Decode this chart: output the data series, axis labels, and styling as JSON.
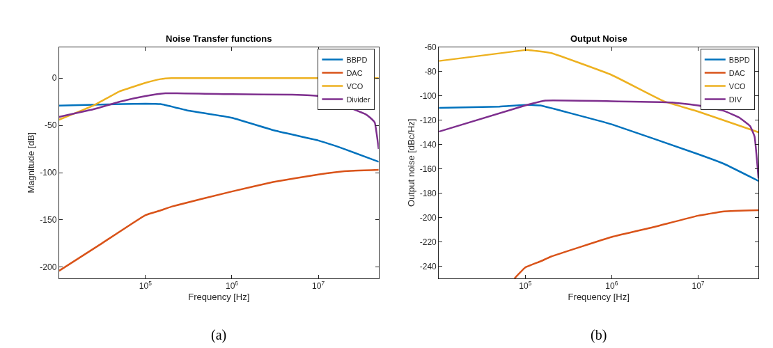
{
  "chart_data": [
    {
      "type": "line",
      "title": "Noise Transfer functions",
      "xlabel": "Frequency [Hz]",
      "ylabel": "Magnitude [dB]",
      "annotations": [
        "(a)"
      ],
      "log": "x",
      "grid": false,
      "legend": "top right",
      "line_style": "solid",
      "marker": "none",
      "xlim": [
        10000,
        50000000
      ],
      "xticks": [
        {
          "value": 100000,
          "label": "10$^{5}$"
        },
        {
          "value": 1000000,
          "label": "10$^{6}$"
        },
        {
          "value": 10000000,
          "label": "10$^{7}$"
        }
      ],
      "ylim": [
        -212,
        33
      ],
      "yticks": [
        -200,
        -150,
        -100,
        -50,
        0
      ],
      "series": [
        {
          "name": "BBPD",
          "color": "#0072bd",
          "x": [
            10000,
            30000,
            100000,
            150000,
            300000,
            1000000,
            3000000,
            10000000,
            20000000,
            50000000
          ],
          "values": [
            -29,
            -28,
            -27,
            -27.5,
            -34,
            -42,
            -55,
            -66,
            -75,
            -88.5
          ]
        },
        {
          "name": "DAC",
          "color": "#d95319",
          "x": [
            10000,
            30000,
            100000,
            150000,
            200000,
            1000000,
            3000000,
            10000000,
            20000000,
            50000000
          ],
          "values": [
            -204,
            -176,
            -145,
            -140,
            -136,
            -120,
            -110,
            -102,
            -98.5,
            -97
          ]
        },
        {
          "name": "VCO",
          "color": "#edb120",
          "x": [
            10000,
            25000,
            50000,
            100000,
            150000,
            200000,
            1000000,
            50000000
          ],
          "values": [
            -44,
            -29,
            -14,
            -5,
            -1,
            0,
            0,
            0
          ]
        },
        {
          "name": "Divider",
          "color": "#7e2f8e",
          "x": [
            10000,
            25000,
            50000,
            100000,
            170000,
            1000000,
            5000000,
            10000000,
            35000000,
            40000000,
            45000000,
            50000000
          ],
          "values": [
            -41,
            -33,
            -25,
            -19,
            -16,
            -17,
            -17.5,
            -19,
            -38,
            -42,
            -47,
            -75
          ]
        }
      ]
    },
    {
      "type": "line",
      "title": "Output Noise",
      "xlabel": "Frequency [Hz]",
      "ylabel": "Output noise [dBc/Hz]",
      "annotations": [
        "(b)"
      ],
      "log": "x",
      "grid": false,
      "legend": "top right",
      "line_style": "solid",
      "marker": "none",
      "xlim": [
        10000,
        50000000
      ],
      "xticks": [
        {
          "value": 100000,
          "label": "10$^{5}$"
        },
        {
          "value": 1000000,
          "label": "10$^{6}$"
        },
        {
          "value": 10000000,
          "label": "10$^{7}$"
        }
      ],
      "ylim": [
        -250,
        -60
      ],
      "yticks": [
        -240,
        -220,
        -200,
        -180,
        -160,
        -140,
        -120,
        -100,
        -80,
        -60
      ],
      "series": [
        {
          "name": "BBPD",
          "color": "#0072bd",
          "x": [
            10000,
            50000,
            100000,
            150000,
            300000,
            1000000,
            10000000,
            20000000,
            50000000
          ],
          "values": [
            -110,
            -109,
            -107.5,
            -108,
            -113.5,
            -123.5,
            -148,
            -156,
            -170
          ]
        },
        {
          "name": "DAC",
          "color": "#d95319",
          "x": [
            75000,
            100000,
            150000,
            200000,
            1000000,
            3000000,
            10000000,
            20000000,
            50000000
          ],
          "values": [
            -250,
            -241,
            -236,
            -232,
            -216,
            -208,
            -198.5,
            -195,
            -194
          ]
        },
        {
          "name": "VCO",
          "color": "#edb120",
          "x": [
            10000,
            100000,
            110000,
            200000,
            1000000,
            4000000,
            10000000,
            50000000
          ],
          "values": [
            -71.5,
            -62.5,
            -62.5,
            -65,
            -83,
            -104.5,
            -113,
            -130
          ]
        },
        {
          "name": "DIV",
          "color": "#7e2f8e",
          "x": [
            10000,
            100000,
            170000,
            1000000,
            5000000,
            10000000,
            20000000,
            30000000,
            40000000,
            45000000,
            50000000
          ],
          "values": [
            -129.5,
            -108,
            -104,
            -104.5,
            -105.5,
            -108,
            -112.5,
            -118,
            -125,
            -133.5,
            -168
          ]
        }
      ]
    }
  ]
}
